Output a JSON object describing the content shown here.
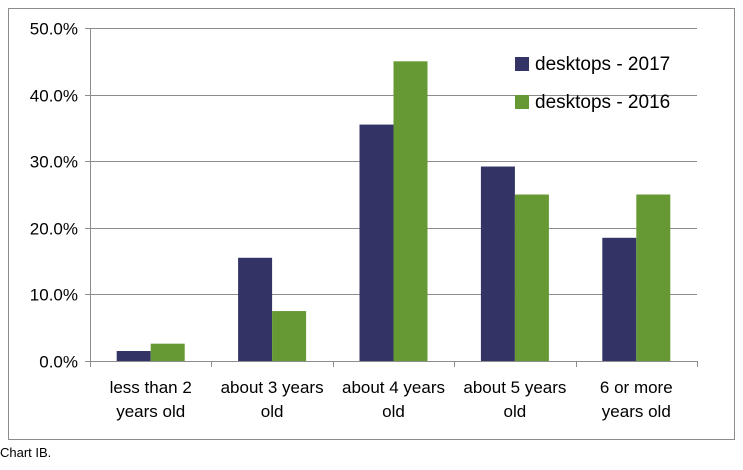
{
  "caption": "Chart IB.",
  "colors": {
    "desktops_2017": "#333366",
    "desktops_2016": "#669933",
    "gridline": "#8c8c8c",
    "axis": "#8c8c8c",
    "frame": "#8c8c8c"
  },
  "chart_data": {
    "type": "bar",
    "categories": [
      [
        "less than 2",
        "years old"
      ],
      [
        "about 3 years",
        "old"
      ],
      [
        "about 4 years",
        "old"
      ],
      [
        "about 5 years",
        "old"
      ],
      [
        "6 or more",
        "years old"
      ]
    ],
    "series": [
      {
        "name": "desktops - 2017",
        "color": "#333366",
        "values": [
          1.5,
          15.5,
          35.5,
          29.2,
          18.5
        ]
      },
      {
        "name": "desktops - 2016",
        "color": "#669933",
        "values": [
          2.6,
          7.5,
          45.0,
          25.0,
          25.0
        ]
      }
    ],
    "y_ticks": [
      "0.0%",
      "10.0%",
      "20.0%",
      "30.0%",
      "40.0%",
      "50.0%"
    ],
    "ylim": [
      0,
      50
    ],
    "grid": true,
    "legend": "top-right"
  }
}
